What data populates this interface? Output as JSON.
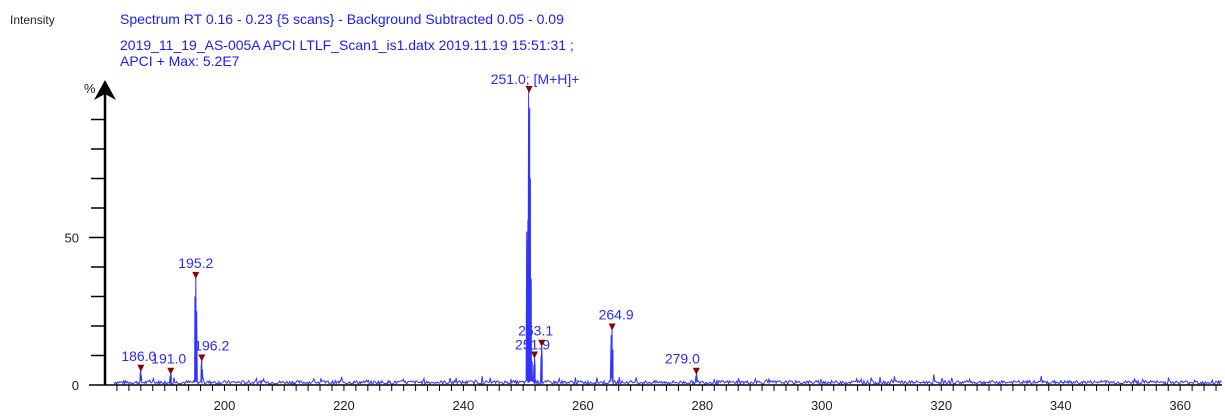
{
  "header": {
    "ylabel": "Intensity",
    "line1": "Spectrum RT 0.16 - 0.23 {5 scans} - Background Subtracted 0.05 - 0.09",
    "line2": "2019_11_19_AS-005A APCI LTLF_Scan1_is1.datx 2019.11.19 15:51:31 ;",
    "line3": "APCI + Max: 5.2E7"
  },
  "chart_data": {
    "type": "line",
    "xlim": [
      180,
      367
    ],
    "ylim": [
      0,
      100
    ],
    "y_axis_label": "%",
    "x_ticks": [
      200,
      220,
      240,
      260,
      280,
      300,
      320,
      340,
      360
    ],
    "y_tick_labels": [
      0,
      50
    ],
    "colors": {
      "trace": "#3333ff",
      "marker": "#8b0000",
      "axis": "#000000"
    },
    "peaks": [
      {
        "mz": 186.0,
        "intensity": 5.5,
        "label": "186.0"
      },
      {
        "mz": 191.0,
        "intensity": 4.5,
        "label": "191.0"
      },
      {
        "mz": 195.2,
        "intensity": 37,
        "label": "195.2"
      },
      {
        "mz": 196.2,
        "intensity": 9,
        "label": "196.2"
      },
      {
        "mz": 251.0,
        "intensity": 100,
        "label": "251.0; [M+H]+"
      },
      {
        "mz": 251.9,
        "intensity": 10,
        "label": "251.9"
      },
      {
        "mz": 253.1,
        "intensity": 14,
        "label": "253.1"
      },
      {
        "mz": 264.9,
        "intensity": 19.5,
        "label": "264.9"
      },
      {
        "mz": 279.0,
        "intensity": 4.5,
        "label": "279.0"
      }
    ]
  }
}
